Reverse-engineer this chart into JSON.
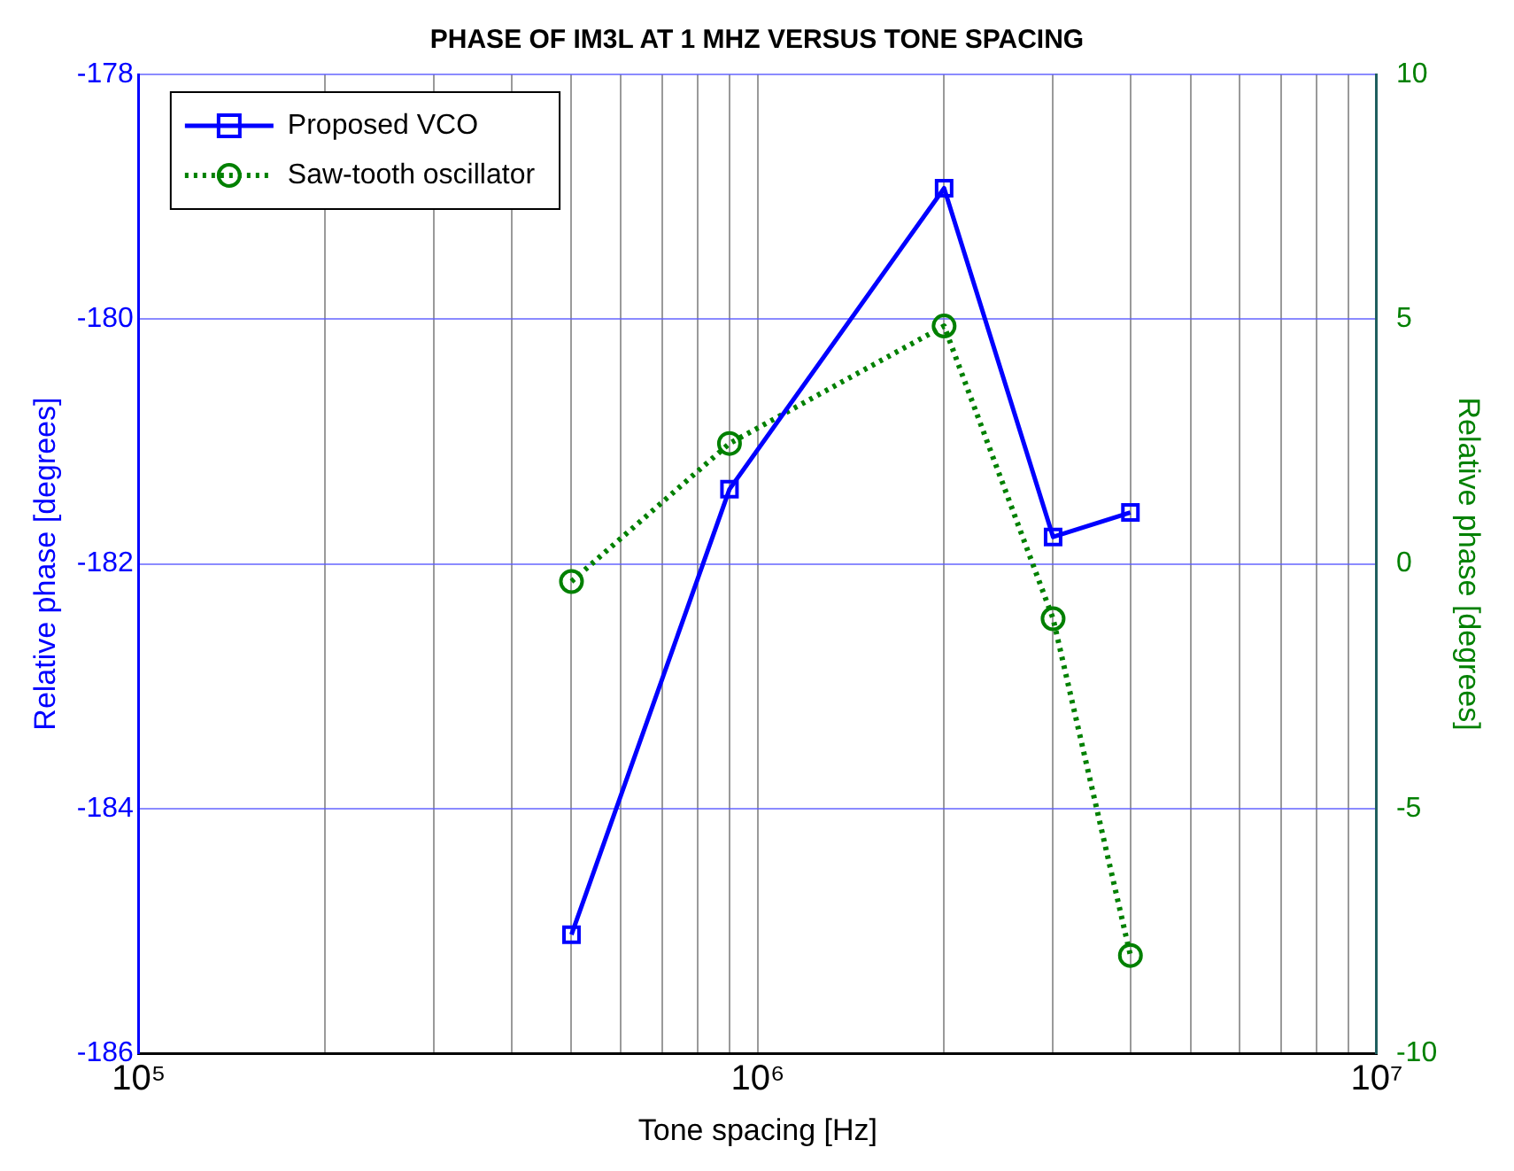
{
  "chart_data": {
    "type": "line",
    "title": "PHASE OF IM3L AT 1 MHZ VERSUS TONE SPACING",
    "xlabel": "Tone spacing [Hz]",
    "ylabel": "Relative phase [degrees]",
    "y2label": "Relative phase [degrees]",
    "x": [
      500000,
      900000,
      2000000,
      3000000,
      4000000
    ],
    "series": [
      {
        "name": "Proposed VCO",
        "color": "#0000ff",
        "values": [
          -185.03,
          -181.39,
          -178.93,
          -181.78,
          -181.58
        ],
        "marker": "square",
        "line_style": "solid"
      },
      {
        "name": "Saw-tooth oscillator",
        "color": "#008000",
        "axis": "y2",
        "values": [
          -0.36,
          2.46,
          4.86,
          -1.12,
          -8.0
        ],
        "marker": "circle",
        "line_style": "dotted"
      }
    ],
    "log": "x",
    "grid": true,
    "legend": "top left",
    "xlim": [
      100000,
      10000000
    ],
    "xticks": [
      {
        "value": 100000,
        "label": "10⁵"
      },
      {
        "value": 200000,
        "label": null
      },
      {
        "value": 300000,
        "label": null
      },
      {
        "value": 400000,
        "label": null
      },
      {
        "value": 500000,
        "label": null
      },
      {
        "value": 600000,
        "label": null
      },
      {
        "value": 700000,
        "label": null
      },
      {
        "value": 800000,
        "label": null
      },
      {
        "value": 900000,
        "label": null
      },
      {
        "value": 1000000,
        "label": "10⁶"
      },
      {
        "value": 2000000,
        "label": null
      },
      {
        "value": 3000000,
        "label": null
      },
      {
        "value": 4000000,
        "label": null
      },
      {
        "value": 5000000,
        "label": null
      },
      {
        "value": 6000000,
        "label": null
      },
      {
        "value": 7000000,
        "label": null
      },
      {
        "value": 8000000,
        "label": null
      },
      {
        "value": 9000000,
        "label": null
      },
      {
        "value": 10000000,
        "label": "10⁷"
      }
    ],
    "ylim": [
      -186,
      -178
    ],
    "yticks": [
      -186,
      -184,
      -182,
      -180,
      -178
    ],
    "y2lim": [
      -10,
      10
    ],
    "y2ticks": [
      -10,
      -5,
      0,
      5,
      10
    ]
  }
}
